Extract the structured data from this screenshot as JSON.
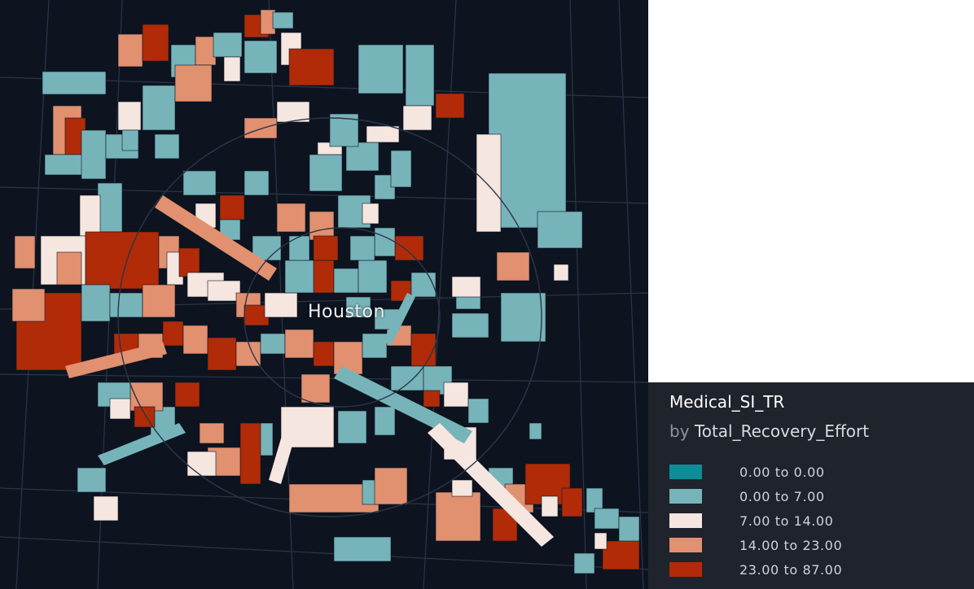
{
  "map": {
    "city_label": "Houston",
    "colors": {
      "background": "#0d1420",
      "road": "#2a3648",
      "class_1": "#0d8d97",
      "class_2": "#76b4ba",
      "class_3": "#f6e6e0",
      "class_4": "#e19070",
      "class_5": "#b12b08"
    }
  },
  "legend": {
    "title": "Medical_SI_TR",
    "by_prefix": "by",
    "by_field": "Total_Recovery_Effort",
    "items": [
      {
        "label": "0.00 to 0.00",
        "color": "#0d8d97"
      },
      {
        "label": "0.00 to 7.00",
        "color": "#76b4ba"
      },
      {
        "label": "7.00 to 14.00",
        "color": "#f6e6e0"
      },
      {
        "label": "14.00 to 23.00",
        "color": "#e19070"
      },
      {
        "label": "23.00 to 87.00",
        "color": "#b12b08"
      }
    ]
  }
}
